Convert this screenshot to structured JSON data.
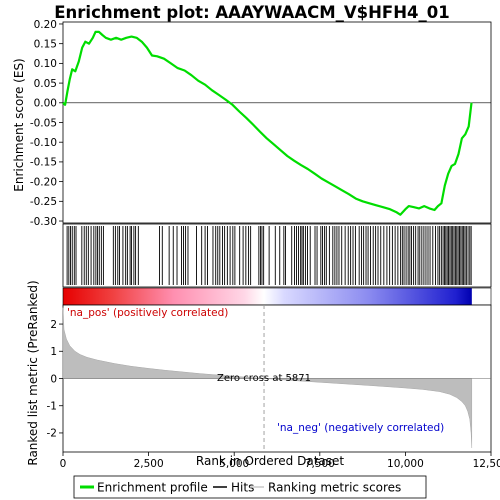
{
  "chart_data": {
    "type": "line",
    "title": "Enrichment plot: AAAYWAACM_V$HFH4_01",
    "xlabel": "Rank in Ordered Dataset",
    "ylabel_top": "Enrichment score (ES)",
    "ylabel_bottom": "Ranked list metric (PreRanked)",
    "xlim": [
      0,
      12500
    ],
    "x_ticks": [
      {
        "value": 0,
        "label": "0"
      },
      {
        "value": 2500,
        "label": "2,500"
      },
      {
        "value": 5000,
        "label": "5,000"
      },
      {
        "value": 7500,
        "label": "7,500"
      },
      {
        "value": 10000,
        "label": "10,000"
      },
      {
        "value": 12500,
        "label": "12,500"
      }
    ],
    "es_ylim": [
      -0.305,
      0.205
    ],
    "es_y_ticks": [
      {
        "value": 0.2,
        "label": "0.20"
      },
      {
        "value": 0.15,
        "label": "0.15"
      },
      {
        "value": 0.1,
        "label": "0.10"
      },
      {
        "value": 0.05,
        "label": "0.05"
      },
      {
        "value": 0.0,
        "label": "0.00"
      },
      {
        "value": -0.05,
        "label": "-0.05"
      },
      {
        "value": -0.1,
        "label": "-0.10"
      },
      {
        "value": -0.15,
        "label": "-0.15"
      },
      {
        "value": -0.2,
        "label": "-0.20"
      },
      {
        "value": -0.25,
        "label": "-0.25"
      },
      {
        "value": -0.3,
        "label": "-0.30"
      }
    ],
    "metric_ylim": [
      -2.7,
      2.7
    ],
    "metric_y_ticks": [
      {
        "value": 2,
        "label": "2"
      },
      {
        "value": 1,
        "label": "1"
      },
      {
        "value": 0,
        "label": "0"
      },
      {
        "value": -1,
        "label": "-1"
      },
      {
        "value": -2,
        "label": "-2"
      }
    ],
    "series": [
      {
        "name": "Enrichment profile",
        "color": "#00dd00",
        "x": [
          0,
          60,
          130,
          200,
          270,
          360,
          460,
          560,
          650,
          760,
          870,
          950,
          1050,
          1150,
          1250,
          1400,
          1550,
          1700,
          1850,
          2000,
          2150,
          2300,
          2450,
          2600,
          2750,
          2950,
          3150,
          3350,
          3550,
          3750,
          3950,
          4150,
          4350,
          4550,
          4750,
          4950,
          5150,
          5350,
          5550,
          5750,
          5950,
          6150,
          6350,
          6550,
          6750,
          6950,
          7150,
          7350,
          7550,
          7750,
          7950,
          8150,
          8350,
          8550,
          8750,
          8950,
          9150,
          9350,
          9550,
          9750,
          9850,
          10000,
          10100,
          10250,
          10400,
          10550,
          10700,
          10850,
          10950,
          11050,
          11150,
          11250,
          11350,
          11450,
          11550,
          11650,
          11750,
          11850,
          11930
        ],
        "y": [
          0.0,
          -0.005,
          0.03,
          0.06,
          0.085,
          0.08,
          0.105,
          0.14,
          0.155,
          0.15,
          0.165,
          0.18,
          0.18,
          0.172,
          0.165,
          0.16,
          0.165,
          0.16,
          0.165,
          0.168,
          0.165,
          0.155,
          0.14,
          0.12,
          0.118,
          0.112,
          0.1,
          0.088,
          0.082,
          0.07,
          0.056,
          0.046,
          0.032,
          0.02,
          0.008,
          -0.005,
          -0.022,
          -0.038,
          -0.055,
          -0.073,
          -0.09,
          -0.105,
          -0.12,
          -0.135,
          -0.147,
          -0.158,
          -0.168,
          -0.18,
          -0.192,
          -0.202,
          -0.212,
          -0.222,
          -0.232,
          -0.243,
          -0.25,
          -0.255,
          -0.26,
          -0.265,
          -0.27,
          -0.278,
          -0.284,
          -0.27,
          -0.262,
          -0.265,
          -0.268,
          -0.262,
          -0.268,
          -0.272,
          -0.262,
          -0.255,
          -0.21,
          -0.18,
          -0.16,
          -0.155,
          -0.13,
          -0.09,
          -0.08,
          -0.06,
          0.0
        ]
      }
    ],
    "hits": [
      120,
      170,
      220,
      270,
      330,
      380,
      550,
      620,
      680,
      740,
      820,
      900,
      960,
      1010,
      1060,
      1120,
      1180,
      1470,
      1530,
      1600,
      1650,
      1750,
      1830,
      1880,
      1960,
      2000,
      2070,
      2120,
      2200,
      2820,
      2900,
      3100,
      3220,
      3330,
      3460,
      3520,
      3580,
      3650,
      3900,
      4050,
      4150,
      4220,
      4380,
      4460,
      4520,
      4580,
      4660,
      4720,
      4800,
      4880,
      4960,
      5020,
      5160,
      5260,
      5340,
      5420,
      5480,
      5720,
      5770,
      5810,
      5860,
      6020,
      6200,
      6330,
      6450,
      6500,
      6680,
      6760,
      6820,
      6880,
      6940,
      6980,
      7020,
      7080,
      7140,
      7220,
      7360,
      7420,
      7530,
      7580,
      7640,
      7690,
      7780,
      7880,
      7940,
      8000,
      8060,
      8140,
      8240,
      8330,
      8400,
      8470,
      8540,
      8650,
      8720,
      8780,
      8850,
      8910,
      8980,
      9060,
      9130,
      9200,
      9280,
      9370,
      9460,
      9540,
      9620,
      9700,
      9780,
      9860,
      9910,
      9960,
      10020,
      10080,
      10130,
      10180,
      10240,
      10300,
      10370,
      10420,
      10480,
      10540,
      10600,
      10660,
      10720,
      10800,
      10880,
      10950,
      11000,
      11050,
      11100,
      11140,
      11180,
      11220,
      11260,
      11300,
      11340,
      11380,
      11420,
      11460,
      11500,
      11540,
      11580,
      11620,
      11660,
      11700,
      11740,
      11780,
      11830,
      11880,
      11920
    ],
    "zero_cross": {
      "x": 5871,
      "label": "Zero cross at 5871"
    },
    "metric_curve": {
      "x": [
        0,
        30,
        100,
        200,
        350,
        500,
        700,
        1000,
        1500,
        2000,
        2500,
        3000,
        4000,
        5000,
        5871,
        7000,
        8000,
        9000,
        10000,
        10500,
        11000,
        11300,
        11500,
        11650,
        11750,
        11820,
        11880,
        11920,
        11940
      ],
      "y": [
        2.6,
        1.8,
        1.45,
        1.2,
        1.0,
        0.88,
        0.78,
        0.68,
        0.55,
        0.45,
        0.37,
        0.3,
        0.18,
        0.08,
        0.0,
        -0.1,
        -0.18,
        -0.26,
        -0.35,
        -0.4,
        -0.48,
        -0.58,
        -0.7,
        -0.85,
        -1.0,
        -1.2,
        -1.5,
        -2.0,
        -2.55
      ]
    },
    "labels": {
      "pos": "'na_pos' (positively correlated)",
      "neg": "'na_neg' (negatively correlated)"
    },
    "legend": {
      "placement": "bottom",
      "entries": [
        {
          "label": "Enrichment profile",
          "color": "#00dd00"
        },
        {
          "label": "Hits",
          "color": "#000000"
        },
        {
          "label": "Ranking metric scores",
          "color": "#c8c8c8"
        }
      ]
    },
    "colors": {
      "profile": "#00dd00",
      "metric_fill": "#bdbdbd",
      "pos_label": "#cc0000",
      "neg_label": "#0000cc",
      "zero_line": "#999999"
    }
  }
}
